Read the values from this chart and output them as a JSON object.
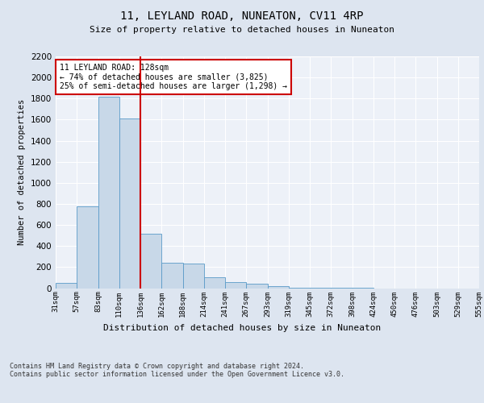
{
  "title1": "11, LEYLAND ROAD, NUNEATON, CV11 4RP",
  "title2": "Size of property relative to detached houses in Nuneaton",
  "xlabel": "Distribution of detached houses by size in Nuneaton",
  "ylabel": "Number of detached properties",
  "footnote": "Contains HM Land Registry data © Crown copyright and database right 2024.\nContains public sector information licensed under the Open Government Licence v3.0.",
  "bin_labels": [
    "31sqm",
    "57sqm",
    "83sqm",
    "110sqm",
    "136sqm",
    "162sqm",
    "188sqm",
    "214sqm",
    "241sqm",
    "267sqm",
    "293sqm",
    "319sqm",
    "345sqm",
    "372sqm",
    "398sqm",
    "424sqm",
    "450sqm",
    "476sqm",
    "503sqm",
    "529sqm",
    "555sqm"
  ],
  "bar_values": [
    50,
    780,
    1820,
    1610,
    520,
    240,
    230,
    105,
    55,
    40,
    20,
    5,
    2,
    1,
    1,
    0,
    0,
    0,
    0,
    0
  ],
  "bar_color": "#c8d8e8",
  "bar_edge_color": "#5a9ac8",
  "vline_bin_index": 4,
  "vline_color": "#cc0000",
  "annotation_title": "11 LEYLAND ROAD: 128sqm",
  "annotation_line1": "← 74% of detached houses are smaller (3,825)",
  "annotation_line2": "25% of semi-detached houses are larger (1,298) →",
  "annotation_box_color": "#cc0000",
  "ylim": [
    0,
    2200
  ],
  "yticks": [
    0,
    200,
    400,
    600,
    800,
    1000,
    1200,
    1400,
    1600,
    1800,
    2000,
    2200
  ],
  "background_color": "#dde5f0",
  "plot_background": "#edf1f8"
}
